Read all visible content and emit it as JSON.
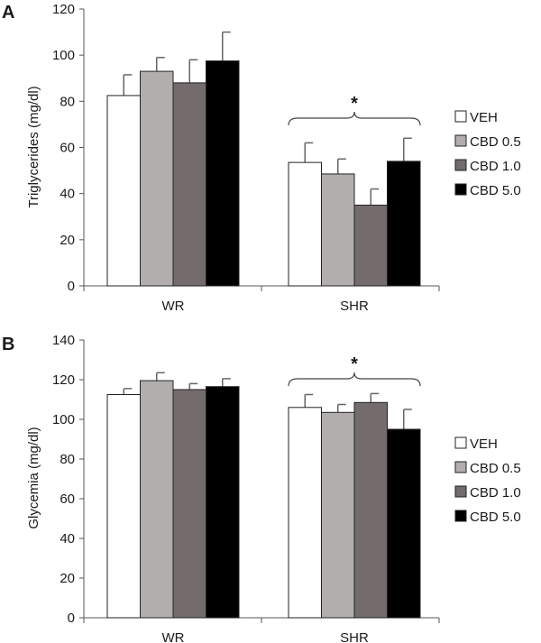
{
  "chart_data": [
    {
      "type": "bar",
      "panel_label": "A",
      "ylabel": "Triglycerides (mg/dl)",
      "xlabel": "",
      "ylim": [
        0,
        120
      ],
      "yticks": [
        0,
        20,
        40,
        60,
        80,
        100,
        120
      ],
      "categories": [
        "WR",
        "SHR"
      ],
      "series": [
        {
          "name": "VEH",
          "color": "#ffffff",
          "values": [
            82.5,
            53.5
          ],
          "errors": [
            9,
            8.5
          ]
        },
        {
          "name": "CBD 0.5",
          "color": "#b2aeae",
          "values": [
            93,
            48.5
          ],
          "errors": [
            6,
            6.5
          ]
        },
        {
          "name": "CBD 1.0",
          "color": "#736b6c",
          "values": [
            88,
            35
          ],
          "errors": [
            10,
            7
          ]
        },
        {
          "name": "CBD 5.0",
          "color": "#000000",
          "values": [
            97.5,
            54
          ],
          "errors": [
            12.5,
            10
          ]
        }
      ],
      "annotation": {
        "text": "*",
        "category": "SHR"
      },
      "legend": [
        "VEH",
        "CBD 0.5",
        "CBD 1.0",
        "CBD 5.0"
      ]
    },
    {
      "type": "bar",
      "panel_label": "B",
      "ylabel": "Glycemia (mg/dl)",
      "xlabel": "",
      "ylim": [
        0,
        140
      ],
      "yticks": [
        0,
        20,
        40,
        60,
        80,
        100,
        120,
        140
      ],
      "categories": [
        "WR",
        "SHR"
      ],
      "series": [
        {
          "name": "VEH",
          "color": "#ffffff",
          "values": [
            112.5,
            106
          ],
          "errors": [
            3,
            6.5
          ]
        },
        {
          "name": "CBD 0.5",
          "color": "#b2aeae",
          "values": [
            119.5,
            103.5
          ],
          "errors": [
            4,
            4
          ]
        },
        {
          "name": "CBD 1.0",
          "color": "#736b6c",
          "values": [
            115,
            108.5
          ],
          "errors": [
            3,
            4.5
          ]
        },
        {
          "name": "CBD 5.0",
          "color": "#000000",
          "values": [
            116.5,
            95
          ],
          "errors": [
            4,
            10
          ]
        }
      ],
      "annotation": {
        "text": "*",
        "category": "SHR"
      },
      "legend": [
        "VEH",
        "CBD 0.5",
        "CBD 1.0",
        "CBD 5.0"
      ]
    }
  ]
}
